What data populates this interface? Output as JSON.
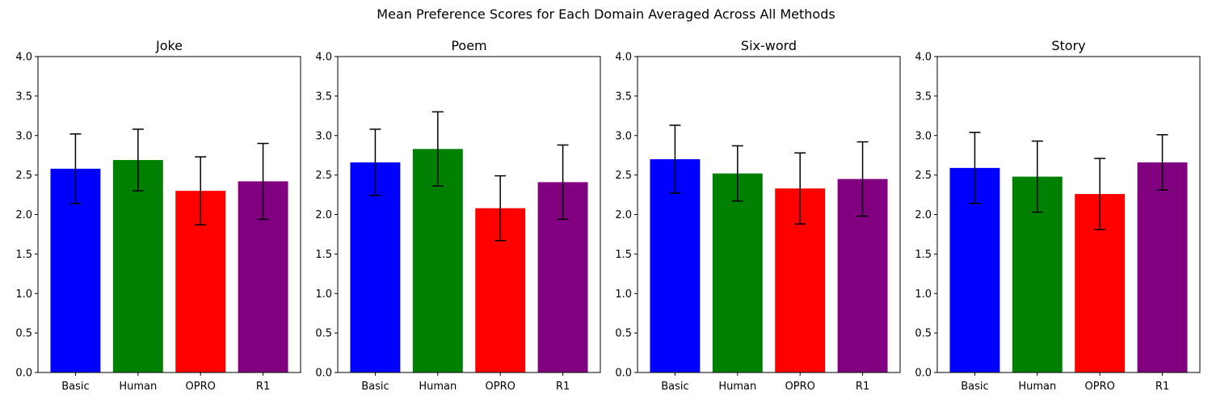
{
  "figure": {
    "title": "Mean Preference Scores for Each Domain Averaged Across All Methods"
  },
  "chart_data": [
    {
      "type": "bar",
      "title": "Joke",
      "categories": [
        "Basic",
        "Human",
        "OPRO",
        "R1"
      ],
      "values": [
        2.58,
        2.69,
        2.3,
        2.42
      ],
      "errors": [
        0.44,
        0.39,
        0.43,
        0.48
      ],
      "colors": [
        "#0000ff",
        "#008000",
        "#ff0000",
        "#800080"
      ],
      "ylim": [
        0,
        4.0
      ],
      "yticks": [
        "0.0",
        "0.5",
        "1.0",
        "1.5",
        "2.0",
        "2.5",
        "3.0",
        "3.5",
        "4.0"
      ]
    },
    {
      "type": "bar",
      "title": "Poem",
      "categories": [
        "Basic",
        "Human",
        "OPRO",
        "R1"
      ],
      "values": [
        2.66,
        2.83,
        2.08,
        2.41
      ],
      "errors": [
        0.42,
        0.47,
        0.41,
        0.47
      ],
      "colors": [
        "#0000ff",
        "#008000",
        "#ff0000",
        "#800080"
      ],
      "ylim": [
        0,
        4.0
      ],
      "yticks": [
        "0.0",
        "0.5",
        "1.0",
        "1.5",
        "2.0",
        "2.5",
        "3.0",
        "3.5",
        "4.0"
      ]
    },
    {
      "type": "bar",
      "title": "Six-word",
      "categories": [
        "Basic",
        "Human",
        "OPRO",
        "R1"
      ],
      "values": [
        2.7,
        2.52,
        2.33,
        2.45
      ],
      "errors": [
        0.43,
        0.35,
        0.45,
        0.47
      ],
      "colors": [
        "#0000ff",
        "#008000",
        "#ff0000",
        "#800080"
      ],
      "ylim": [
        0,
        4.0
      ],
      "yticks": [
        "0.0",
        "0.5",
        "1.0",
        "1.5",
        "2.0",
        "2.5",
        "3.0",
        "3.5",
        "4.0"
      ]
    },
    {
      "type": "bar",
      "title": "Story",
      "categories": [
        "Basic",
        "Human",
        "OPRO",
        "R1"
      ],
      "values": [
        2.59,
        2.48,
        2.26,
        2.66
      ],
      "errors": [
        0.45,
        0.45,
        0.45,
        0.35
      ],
      "colors": [
        "#0000ff",
        "#008000",
        "#ff0000",
        "#800080"
      ],
      "ylim": [
        0,
        4.0
      ],
      "yticks": [
        "0.0",
        "0.5",
        "1.0",
        "1.5",
        "2.0",
        "2.5",
        "3.0",
        "3.5",
        "4.0"
      ]
    }
  ]
}
